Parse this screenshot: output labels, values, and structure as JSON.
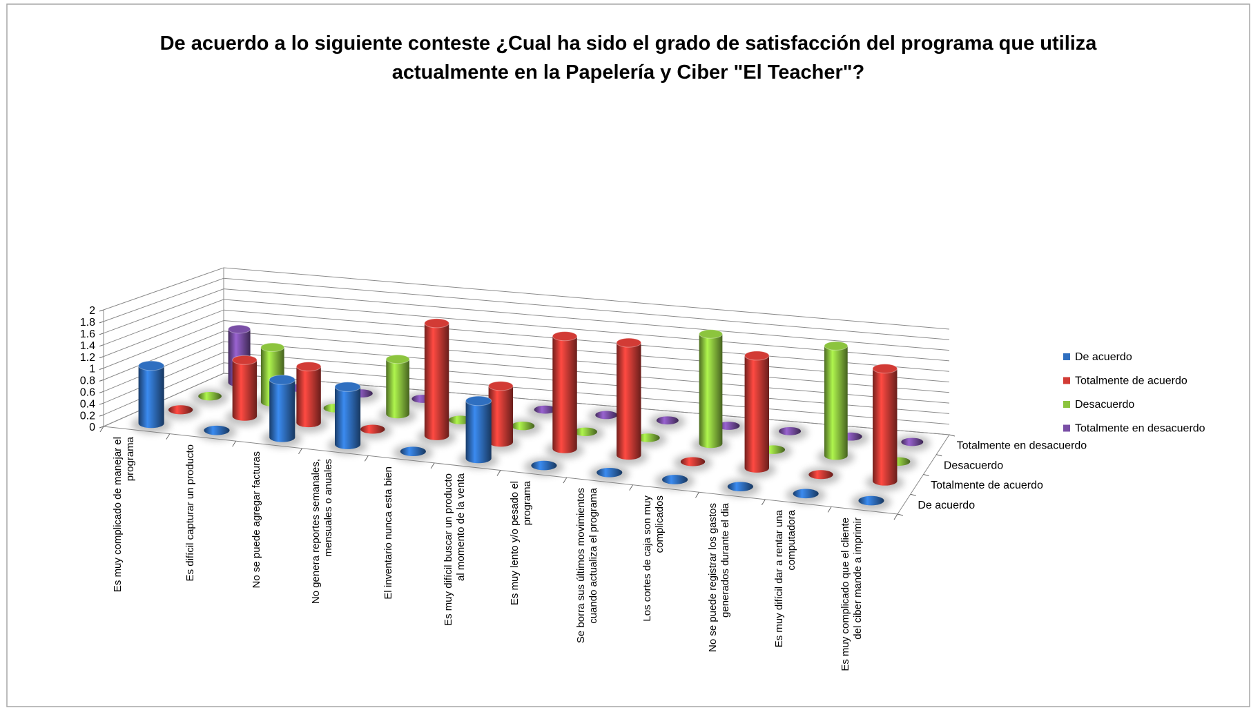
{
  "chart_data": {
    "type": "bar3d",
    "title": "De acuerdo a lo siguiente conteste ¿Cual ha sido el grado de satisfacción del programa que utiliza actualmente en la Papelería y Ciber \"El Teacher\"?",
    "categories": [
      "Es muy complicado de manejar el programa",
      "Es difícil capturar un producto",
      "No se puede agregar facturas",
      "No genera reportes semanales, mensuales o anuales",
      "El inventario nunca esta bien",
      "Es muy difícil buscar un producto al momento de la venta",
      "Es muy lento y/o pesado el programa",
      "Se borra sus últimos movimientos cuando actualiza el programa",
      "Los cortes de caja son muy complicados",
      "No se puede registrar los gastos generados durante el dia",
      "Es muy difícil dar a rentar una computadora",
      "Es muy complicado que el cliente del ciber mande a imprimir"
    ],
    "series": [
      {
        "name": "De acuerdo",
        "color": "#2f6fc0",
        "values": [
          1,
          0,
          1,
          1,
          0,
          1,
          0,
          0,
          0,
          0,
          0,
          0
        ]
      },
      {
        "name": "Totalmente de acuerdo",
        "color": "#d23b35",
        "values": [
          0,
          1,
          1,
          0,
          2,
          1,
          2,
          2,
          0,
          2,
          0,
          2
        ]
      },
      {
        "name": "Desacuerdo",
        "color": "#8cc43e",
        "values": [
          0,
          1,
          0,
          1,
          0,
          0,
          0,
          0,
          2,
          0,
          2,
          0
        ]
      },
      {
        "name": "Totalmente en desacuerdo",
        "color": "#7a4fa6",
        "values": [
          1,
          0,
          0,
          0,
          0,
          0,
          0,
          0,
          0,
          0,
          0,
          0
        ]
      }
    ],
    "ylim": [
      0,
      2
    ],
    "yticks": [
      0,
      0.2,
      0.4,
      0.6,
      0.8,
      1,
      1.2,
      1.4,
      1.6,
      1.8,
      2
    ],
    "grid": true,
    "legend": "right"
  }
}
